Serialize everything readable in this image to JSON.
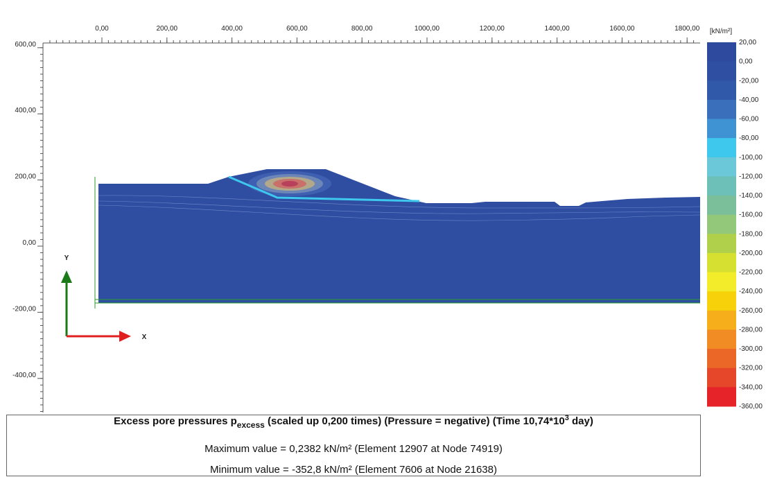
{
  "axes": {
    "x": {
      "ticks": [
        {
          "value": 0,
          "label": "0,00"
        },
        {
          "value": 200,
          "label": "200,00"
        },
        {
          "value": 400,
          "label": "400,00"
        },
        {
          "value": 600,
          "label": "600,00"
        },
        {
          "value": 800,
          "label": "800,00"
        },
        {
          "value": 1000,
          "label": "1000,00"
        },
        {
          "value": 1200,
          "label": "1200,00"
        },
        {
          "value": 1400,
          "label": "1400,00"
        },
        {
          "value": 1600,
          "label": "1600,00"
        },
        {
          "value": 1800,
          "label": "1800,00"
        }
      ]
    },
    "y": {
      "ticks": [
        {
          "value": 600,
          "label": "600,00"
        },
        {
          "value": 400,
          "label": "400,00"
        },
        {
          "value": 200,
          "label": "200,00"
        },
        {
          "value": 0,
          "label": "0,00"
        },
        {
          "value": -200,
          "label": "-200,00"
        },
        {
          "value": -400,
          "label": "-400,00"
        }
      ]
    },
    "arrow_labels": {
      "y": "Y",
      "x": "X"
    }
  },
  "legend": {
    "unit": "[kN/m²]",
    "levels": [
      {
        "value": 20,
        "label": "20,00"
      },
      {
        "value": 0,
        "label": "0,00"
      },
      {
        "value": -20,
        "label": "-20,00"
      },
      {
        "value": -40,
        "label": "-40,00"
      },
      {
        "value": -60,
        "label": "-60,00"
      },
      {
        "value": -80,
        "label": "-80,00"
      },
      {
        "value": -100,
        "label": "-100,00"
      },
      {
        "value": -120,
        "label": "-120,00"
      },
      {
        "value": -140,
        "label": "-140,00"
      },
      {
        "value": -160,
        "label": "-160,00"
      },
      {
        "value": -180,
        "label": "-180,00"
      },
      {
        "value": -200,
        "label": "-200,00"
      },
      {
        "value": -220,
        "label": "-220,00"
      },
      {
        "value": -240,
        "label": "-240,00"
      },
      {
        "value": -260,
        "label": "-260,00"
      },
      {
        "value": -280,
        "label": "-280,00"
      },
      {
        "value": -300,
        "label": "-300,00"
      },
      {
        "value": -320,
        "label": "-320,00"
      },
      {
        "value": -340,
        "label": "-340,00"
      },
      {
        "value": -360,
        "label": "-360,00"
      }
    ],
    "colors": [
      "#2e4a9e",
      "#2f4fa3",
      "#3059a9",
      "#3a6fbc",
      "#3f93d3",
      "#3ec8ee",
      "#6ac8d8",
      "#6dc0b7",
      "#7bbf9a",
      "#93c77a",
      "#b0d04c",
      "#d6e031",
      "#f2ec2a",
      "#f7d20a",
      "#f6ae1b",
      "#f18b24",
      "#eb6728",
      "#e6462a",
      "#e52329"
    ]
  },
  "caption": {
    "title": {
      "main": "Excess pore pressures p",
      "subscript": "excess",
      "middle": " (scaled up 0,200 times) (Pressure = negative) (Time 10,74*10",
      "superscript": "3",
      "end": " day)"
    },
    "maximum": "Maximum value = 0,2382 kN/m² (Element 12907 at Node 74919)",
    "minimum": "Minimum value = -352,8 kN/m² (Element 7606 at Node 21638)"
  }
}
